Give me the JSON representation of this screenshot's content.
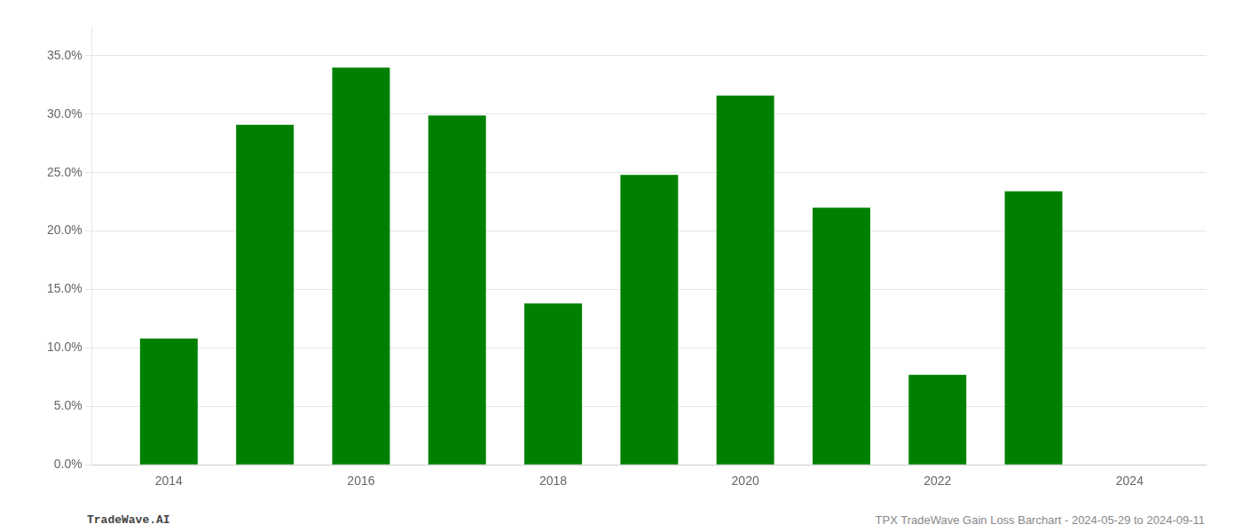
{
  "chart_data": {
    "type": "bar",
    "x": [
      2014,
      2015,
      2016,
      2017,
      2018,
      2019,
      2020,
      2021,
      2022,
      2023
    ],
    "values": [
      0.108,
      0.291,
      0.34,
      0.299,
      0.138,
      0.248,
      0.316,
      0.22,
      0.077,
      0.234
    ],
    "color": "#008000",
    "xlim": [
      2013.2,
      2024.8
    ],
    "xticks": [
      2014,
      2016,
      2018,
      2020,
      2022,
      2024
    ],
    "ylim": [
      0,
      0.375
    ],
    "yticks": [
      {
        "value": 0.0,
        "label": "0.0%"
      },
      {
        "value": 0.05,
        "label": "5.0%"
      },
      {
        "value": 0.1,
        "label": "10.0%"
      },
      {
        "value": 0.15,
        "label": "15.0%"
      },
      {
        "value": 0.2,
        "label": "20.0%"
      },
      {
        "value": 0.25,
        "label": "25.0%"
      },
      {
        "value": 0.3,
        "label": "30.0%"
      },
      {
        "value": 0.35,
        "label": "35.0%"
      }
    ],
    "grid": "y",
    "annotations": [
      "TradeWave.AI",
      "TPX TradeWave Gain Loss Barchart - 2024-05-29 to 2024-09-11"
    ]
  }
}
